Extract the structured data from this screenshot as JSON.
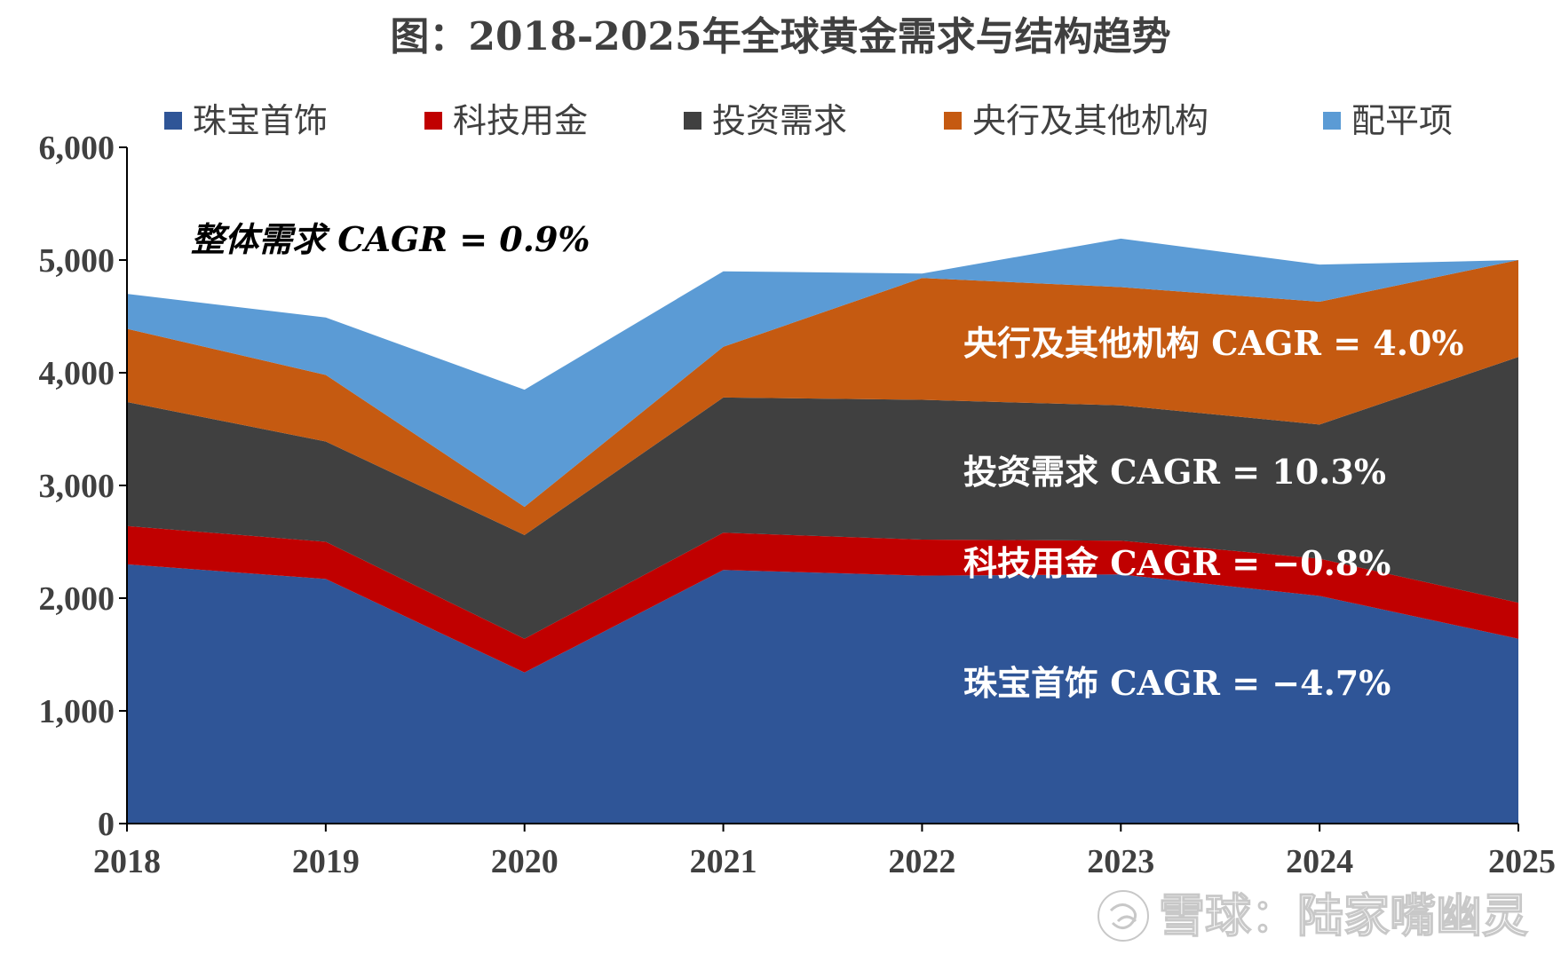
{
  "chart_data": {
    "type": "area",
    "stacked": true,
    "title": "图：2018-2025年全球黄金需求与结构趋势",
    "categories": [
      "2018",
      "2019",
      "2020",
      "2021",
      "2022",
      "2023",
      "2024",
      "2025"
    ],
    "ylim": [
      0,
      6000
    ],
    "yticks": [
      "0",
      "1,000",
      "2,000",
      "3,000",
      "4,000",
      "5,000",
      "6,000"
    ],
    "grid": false,
    "legend_position": "top",
    "series": [
      {
        "name": "珠宝首饰",
        "color": "#2F5597",
        "values": [
          2300,
          2170,
          1340,
          2250,
          2200,
          2210,
          2020,
          1640
        ]
      },
      {
        "name": "科技用金",
        "color": "#C00000",
        "values": [
          340,
          330,
          300,
          330,
          320,
          300,
          330,
          320
        ]
      },
      {
        "name": "投资需求",
        "color": "#404040",
        "values": [
          1100,
          890,
          920,
          1200,
          1240,
          1200,
          1190,
          2180
        ]
      },
      {
        "name": "央行及其他机构",
        "color": "#C55A11",
        "values": [
          650,
          590,
          250,
          450,
          1080,
          1050,
          1090,
          860
        ]
      },
      {
        "name": "配平项",
        "color": "#5B9BD5",
        "values": [
          310,
          510,
          1040,
          670,
          40,
          430,
          330,
          0
        ]
      }
    ],
    "annotations": [
      {
        "id": "total",
        "text": "整体需求 CAGR = 0.9%",
        "color": "#000000"
      },
      {
        "id": "cb",
        "text": "央行及其他机构 CAGR = 4.0%",
        "color": "#ffffff"
      },
      {
        "id": "inv",
        "text": "投资需求 CAGR = 10.3%",
        "color": "#ffffff"
      },
      {
        "id": "tech",
        "text": "科技用金 CAGR = −0.8%",
        "color": "#ffffff"
      },
      {
        "id": "jewel",
        "text": "珠宝首饰 CAGR = −4.7%",
        "color": "#ffffff"
      }
    ]
  },
  "watermark": {
    "text": "雪球：陆家嘴幽灵",
    "icon": "snowball-logo-icon"
  }
}
